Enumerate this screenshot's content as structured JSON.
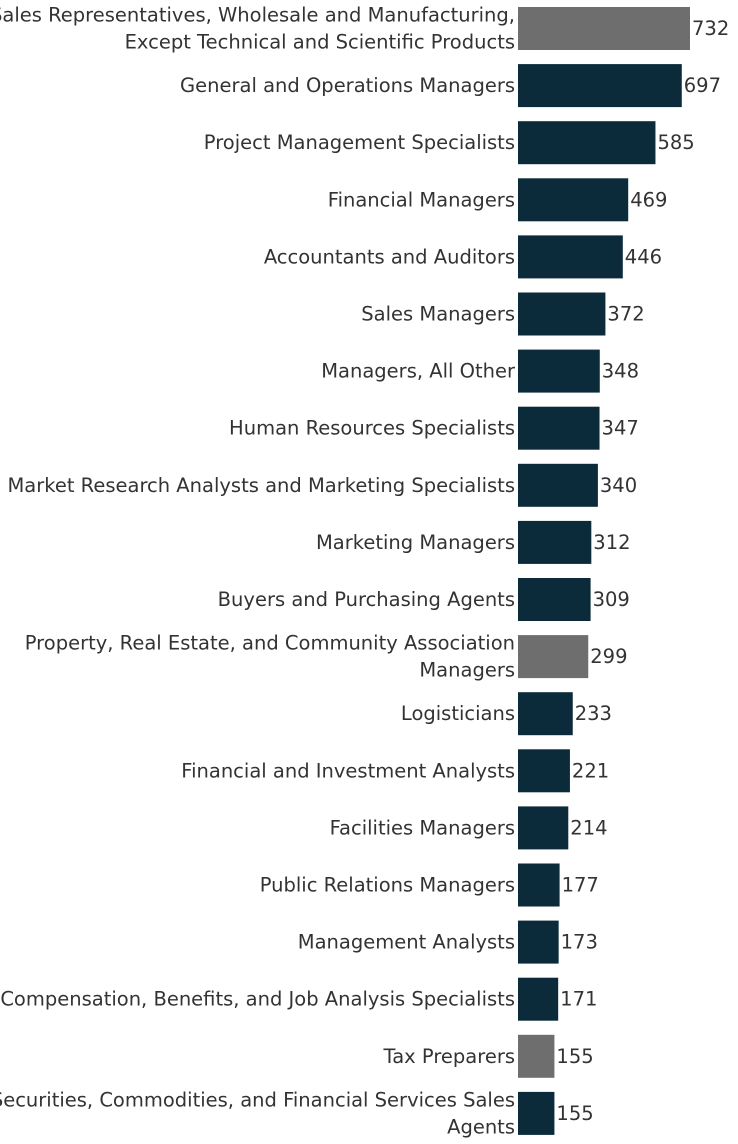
{
  "chart_data": {
    "type": "bar",
    "orientation": "horizontal",
    "title": "",
    "xlabel": "",
    "ylabel": "",
    "xlim": [
      0,
      732
    ],
    "colors": {
      "default": "#0b2a3a",
      "highlight": "#6e6e6e"
    },
    "bars": [
      {
        "label_lines": [
          "Sales Representatives, Wholesale and Manufacturing,",
          "Except Technical and Scientific Products"
        ],
        "value": 732,
        "highlight": true
      },
      {
        "label_lines": [
          "General and Operations Managers"
        ],
        "value": 697,
        "highlight": false
      },
      {
        "label_lines": [
          "Project Management Specialists"
        ],
        "value": 585,
        "highlight": false
      },
      {
        "label_lines": [
          "Financial Managers"
        ],
        "value": 469,
        "highlight": false
      },
      {
        "label_lines": [
          "Accountants and Auditors"
        ],
        "value": 446,
        "highlight": false
      },
      {
        "label_lines": [
          "Sales Managers"
        ],
        "value": 372,
        "highlight": false
      },
      {
        "label_lines": [
          "Managers, All Other"
        ],
        "value": 348,
        "highlight": false
      },
      {
        "label_lines": [
          "Human Resources Specialists"
        ],
        "value": 347,
        "highlight": false
      },
      {
        "label_lines": [
          "Market Research Analysts and Marketing Specialists"
        ],
        "value": 340,
        "highlight": false
      },
      {
        "label_lines": [
          "Marketing Managers"
        ],
        "value": 312,
        "highlight": false
      },
      {
        "label_lines": [
          "Buyers and Purchasing Agents"
        ],
        "value": 309,
        "highlight": false
      },
      {
        "label_lines": [
          "Property, Real Estate, and Community Association",
          "Managers"
        ],
        "value": 299,
        "highlight": true
      },
      {
        "label_lines": [
          "Logisticians"
        ],
        "value": 233,
        "highlight": false
      },
      {
        "label_lines": [
          "Financial and Investment Analysts"
        ],
        "value": 221,
        "highlight": false
      },
      {
        "label_lines": [
          "Facilities Managers"
        ],
        "value": 214,
        "highlight": false
      },
      {
        "label_lines": [
          "Public Relations Managers"
        ],
        "value": 177,
        "highlight": false
      },
      {
        "label_lines": [
          "Management Analysts"
        ],
        "value": 173,
        "highlight": false
      },
      {
        "label_lines": [
          "Compensation, Benefits, and Job Analysis Specialists"
        ],
        "value": 171,
        "highlight": false
      },
      {
        "label_lines": [
          "Tax Preparers"
        ],
        "value": 155,
        "highlight": true
      },
      {
        "label_lines": [
          "Securities, Commodities, and Financial Services Sales",
          "Agents"
        ],
        "value": 155,
        "highlight": false
      }
    ]
  }
}
